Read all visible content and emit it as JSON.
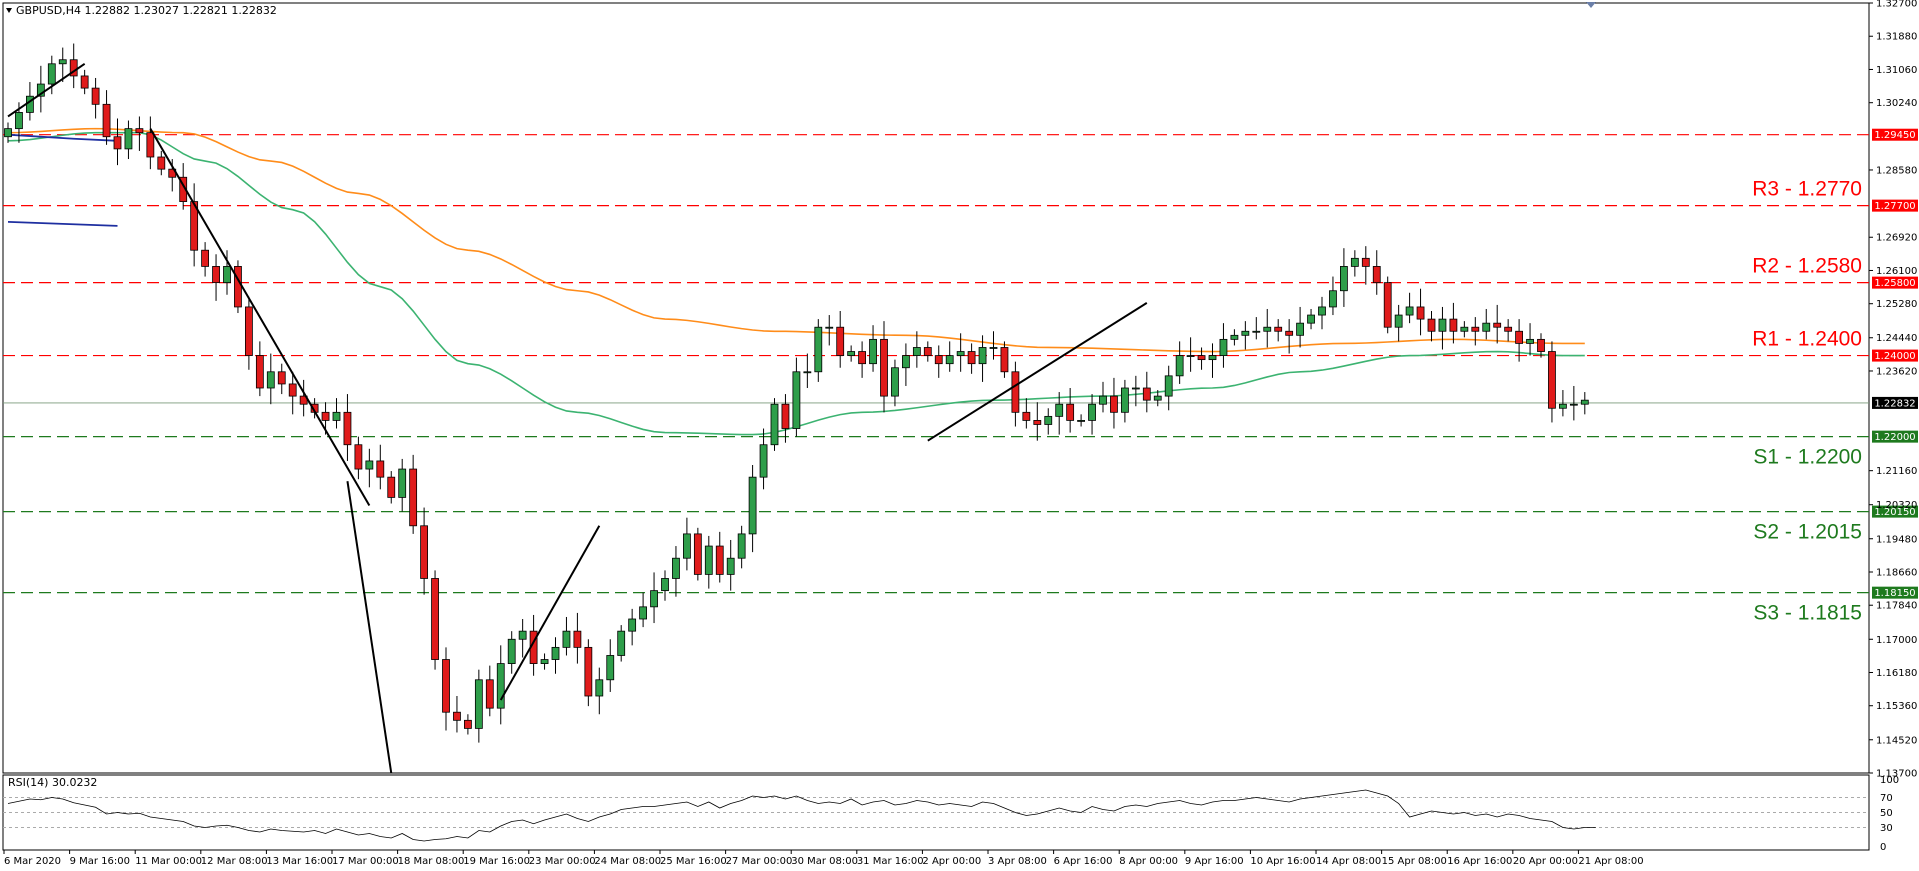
{
  "chart_data": {
    "type": "candlestick",
    "symbol_header": "GBPUSD,H4  1.22882 1.23027 1.22821 1.22832",
    "y_ticks": [
      "1.32700",
      "1.31880",
      "1.31060",
      "1.30240",
      "1.29450",
      "1.28580",
      "1.27700",
      "1.26920",
      "1.26100",
      "1.25280",
      "1.24440",
      "1.24000",
      "1.23620",
      "1.22832",
      "1.22000",
      "1.21160",
      "1.20320",
      "1.20150",
      "1.19480",
      "1.18660",
      "1.18150",
      "1.17840",
      "1.17000",
      "1.16180",
      "1.15360",
      "1.14520",
      "1.13700"
    ],
    "y_range": [
      1.137,
      1.327
    ],
    "x_ticks": [
      "6 Mar 2020",
      "9 Mar 16:00",
      "11 Mar 00:00",
      "12 Mar 08:00",
      "13 Mar 16:00",
      "17 Mar 00:00",
      "18 Mar 08:00",
      "19 Mar 16:00",
      "23 Mar 00:00",
      "24 Mar 08:00",
      "25 Mar 16:00",
      "27 Mar 00:00",
      "30 Mar 08:00",
      "31 Mar 16:00",
      "2 Apr 00:00",
      "3 Apr 08:00",
      "6 Apr 16:00",
      "8 Apr 00:00",
      "9 Apr 16:00",
      "10 Apr 16:00",
      "14 Apr 08:00",
      "15 Apr 08:00",
      "16 Apr 16:00",
      "20 Apr 00:00",
      "21 Apr 08:00"
    ],
    "current_price": 1.22832,
    "levels": [
      {
        "label": "R3 - 1.2770",
        "value": 1.277,
        "tag": "1.27700",
        "kind": "resistance"
      },
      {
        "label": "R2 - 1.2580",
        "value": 1.258,
        "tag": "1.25800",
        "kind": "resistance"
      },
      {
        "label": "R1 - 1.2400",
        "value": 1.24,
        "tag": "1.24000",
        "kind": "resistance"
      },
      {
        "label": "",
        "value": 1.2945,
        "tag": "1.29450",
        "kind": "resistance"
      },
      {
        "label": "S1 - 1.2200",
        "value": 1.22,
        "tag": "1.22000",
        "kind": "support"
      },
      {
        "label": "S2 - 1.2015",
        "value": 1.2015,
        "tag": "1.20150",
        "kind": "support"
      },
      {
        "label": "S3 - 1.1815",
        "value": 1.1815,
        "tag": "1.18150",
        "kind": "support"
      }
    ],
    "close_path": [
      1.296,
      1.3,
      1.304,
      1.307,
      1.312,
      1.313,
      1.309,
      1.306,
      1.302,
      1.294,
      1.291,
      1.296,
      1.295,
      1.289,
      1.286,
      1.284,
      1.278,
      1.266,
      1.262,
      1.258,
      1.262,
      1.252,
      1.24,
      1.232,
      1.236,
      1.233,
      1.23,
      1.228,
      1.226,
      1.224,
      1.226,
      1.218,
      1.212,
      1.214,
      1.21,
      1.205,
      1.212,
      1.198,
      1.185,
      1.165,
      1.152,
      1.15,
      1.148,
      1.16,
      1.153,
      1.164,
      1.17,
      1.172,
      1.164,
      1.165,
      1.168,
      1.172,
      1.168,
      1.156,
      1.16,
      1.166,
      1.172,
      1.175,
      1.178,
      1.182,
      1.185,
      1.19,
      1.196,
      1.186,
      1.193,
      1.186,
      1.19,
      1.196,
      1.21,
      1.218,
      1.228,
      1.222,
      1.236,
      1.236,
      1.247,
      1.247,
      1.24,
      1.241,
      1.238,
      1.244,
      1.23,
      1.237,
      1.24,
      1.242,
      1.24,
      1.238,
      1.24,
      1.241,
      1.238,
      1.242,
      1.242,
      1.236,
      1.226,
      1.224,
      1.223,
      1.225,
      1.228,
      1.224,
      1.224,
      1.228,
      1.23,
      1.226,
      1.232,
      1.232,
      1.229,
      1.23,
      1.235,
      1.24,
      1.24,
      1.239,
      1.24,
      1.244,
      1.245,
      1.246,
      1.246,
      1.247,
      1.246,
      1.245,
      1.248,
      1.25,
      1.252,
      1.256,
      1.262,
      1.264,
      1.262,
      1.258,
      1.247,
      1.25,
      1.252,
      1.249,
      1.246,
      1.249,
      1.246,
      1.247,
      1.246,
      1.248,
      1.247,
      1.246,
      1.243,
      1.244,
      1.241,
      1.227,
      1.228,
      1.228,
      1.229
    ],
    "ma_green_anchor": [
      [
        0,
        1.293
      ],
      [
        8,
        1.295
      ],
      [
        12,
        1.295
      ],
      [
        18,
        1.288
      ],
      [
        26,
        1.276
      ],
      [
        34,
        1.257
      ],
      [
        42,
        1.238
      ],
      [
        52,
        1.226
      ],
      [
        60,
        1.221
      ],
      [
        68,
        1.2205
      ],
      [
        78,
        1.226
      ],
      [
        90,
        1.229
      ],
      [
        100,
        1.23
      ],
      [
        110,
        1.232
      ],
      [
        118,
        1.236
      ],
      [
        128,
        1.24
      ],
      [
        136,
        1.241
      ],
      [
        142,
        1.24
      ]
    ],
    "ma_orange_anchor": [
      [
        0,
        1.295
      ],
      [
        8,
        1.296
      ],
      [
        16,
        1.295
      ],
      [
        24,
        1.288
      ],
      [
        32,
        1.28
      ],
      [
        42,
        1.266
      ],
      [
        52,
        1.256
      ],
      [
        60,
        1.249
      ],
      [
        70,
        1.246
      ],
      [
        82,
        1.245
      ],
      [
        95,
        1.242
      ],
      [
        110,
        1.241
      ],
      [
        122,
        1.243
      ],
      [
        132,
        1.244
      ],
      [
        142,
        1.243
      ]
    ],
    "ma_blue": [
      [
        0,
        1.2945
      ],
      [
        6,
        1.2935
      ],
      [
        10,
        1.293
      ]
    ],
    "ma_blue2": [
      [
        0,
        1.273
      ],
      [
        10,
        1.272
      ]
    ],
    "trendlines": [
      [
        [
          0,
          1.299
        ],
        [
          7,
          1.312
        ]
      ],
      [
        [
          13,
          1.296
        ],
        [
          33,
          1.203
        ]
      ],
      [
        [
          31,
          1.209
        ],
        [
          35,
          1.137
        ]
      ],
      [
        [
          45,
          1.155
        ],
        [
          54,
          1.198
        ]
      ],
      [
        [
          84,
          1.219
        ],
        [
          104,
          1.253
        ]
      ]
    ],
    "rsi": {
      "header": "RSI(14) 30.0232",
      "ticks": [
        "100",
        "70",
        "50",
        "30",
        "0"
      ],
      "levels": [
        70,
        50,
        30
      ],
      "values": [
        62,
        65,
        68,
        67,
        70,
        68,
        63,
        60,
        57,
        48,
        50,
        48,
        49,
        44,
        42,
        40,
        38,
        32,
        30,
        32,
        33,
        30,
        26,
        24,
        28,
        26,
        25,
        24,
        26,
        22,
        28,
        24,
        20,
        22,
        18,
        16,
        22,
        14,
        12,
        14,
        15,
        18,
        16,
        26,
        24,
        32,
        38,
        40,
        35,
        40,
        44,
        48,
        42,
        38,
        44,
        48,
        54,
        56,
        58,
        58,
        60,
        62,
        64,
        58,
        64,
        56,
        62,
        66,
        72,
        70,
        72,
        68,
        72,
        66,
        62,
        64,
        62,
        68,
        60,
        64,
        66,
        60,
        62,
        66,
        64,
        60,
        62,
        60,
        58,
        64,
        62,
        56,
        50,
        46,
        48,
        52,
        56,
        52,
        50,
        58,
        54,
        52,
        58,
        60,
        58,
        62,
        64,
        66,
        62,
        60,
        64,
        66,
        66,
        68,
        70,
        68,
        66,
        64,
        68,
        70,
        72,
        74,
        76,
        78,
        80,
        76,
        72,
        62,
        44,
        48,
        52,
        50,
        48,
        50,
        46,
        48,
        44,
        48,
        46,
        42,
        40,
        38,
        30,
        28,
        30,
        30
      ]
    }
  }
}
